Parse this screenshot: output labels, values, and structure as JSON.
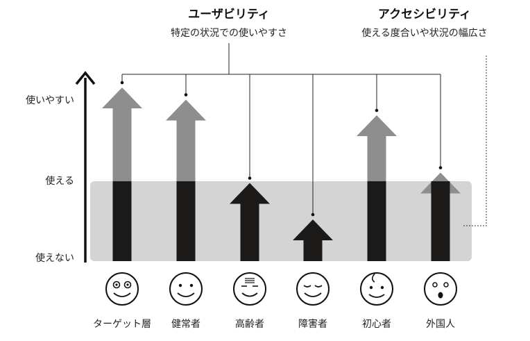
{
  "usability": {
    "title": "ユーザビリティ",
    "subtitle": "特定の状況での使いやすさ"
  },
  "accessibility": {
    "title": "アクセシビリティ",
    "subtitle": "使える度合いや状況の幅広さ"
  },
  "levels": [
    "使いやすい",
    "使える",
    "使えない"
  ],
  "groups": [
    {
      "label": "ターゲット層",
      "face": "glasses-face-icon",
      "usability": 1.0
    },
    {
      "label": "健常者",
      "face": "smile-face-icon",
      "usability": 0.93
    },
    {
      "label": "高齢者",
      "face": "elderly-face-icon",
      "usability": 0.45
    },
    {
      "label": "障害者",
      "face": "closed-eyes-face-icon",
      "usability": 0.24
    },
    {
      "label": "初心者",
      "face": "curl-face-icon",
      "usability": 0.84
    },
    {
      "label": "外国人",
      "face": "surprised-face-icon",
      "usability": 0.51
    }
  ],
  "colors": {
    "arrow_dark": "#1c1a19",
    "arrow_gray": "#8e8e8e",
    "band": "#d4d4d4",
    "axis": "#111111"
  }
}
